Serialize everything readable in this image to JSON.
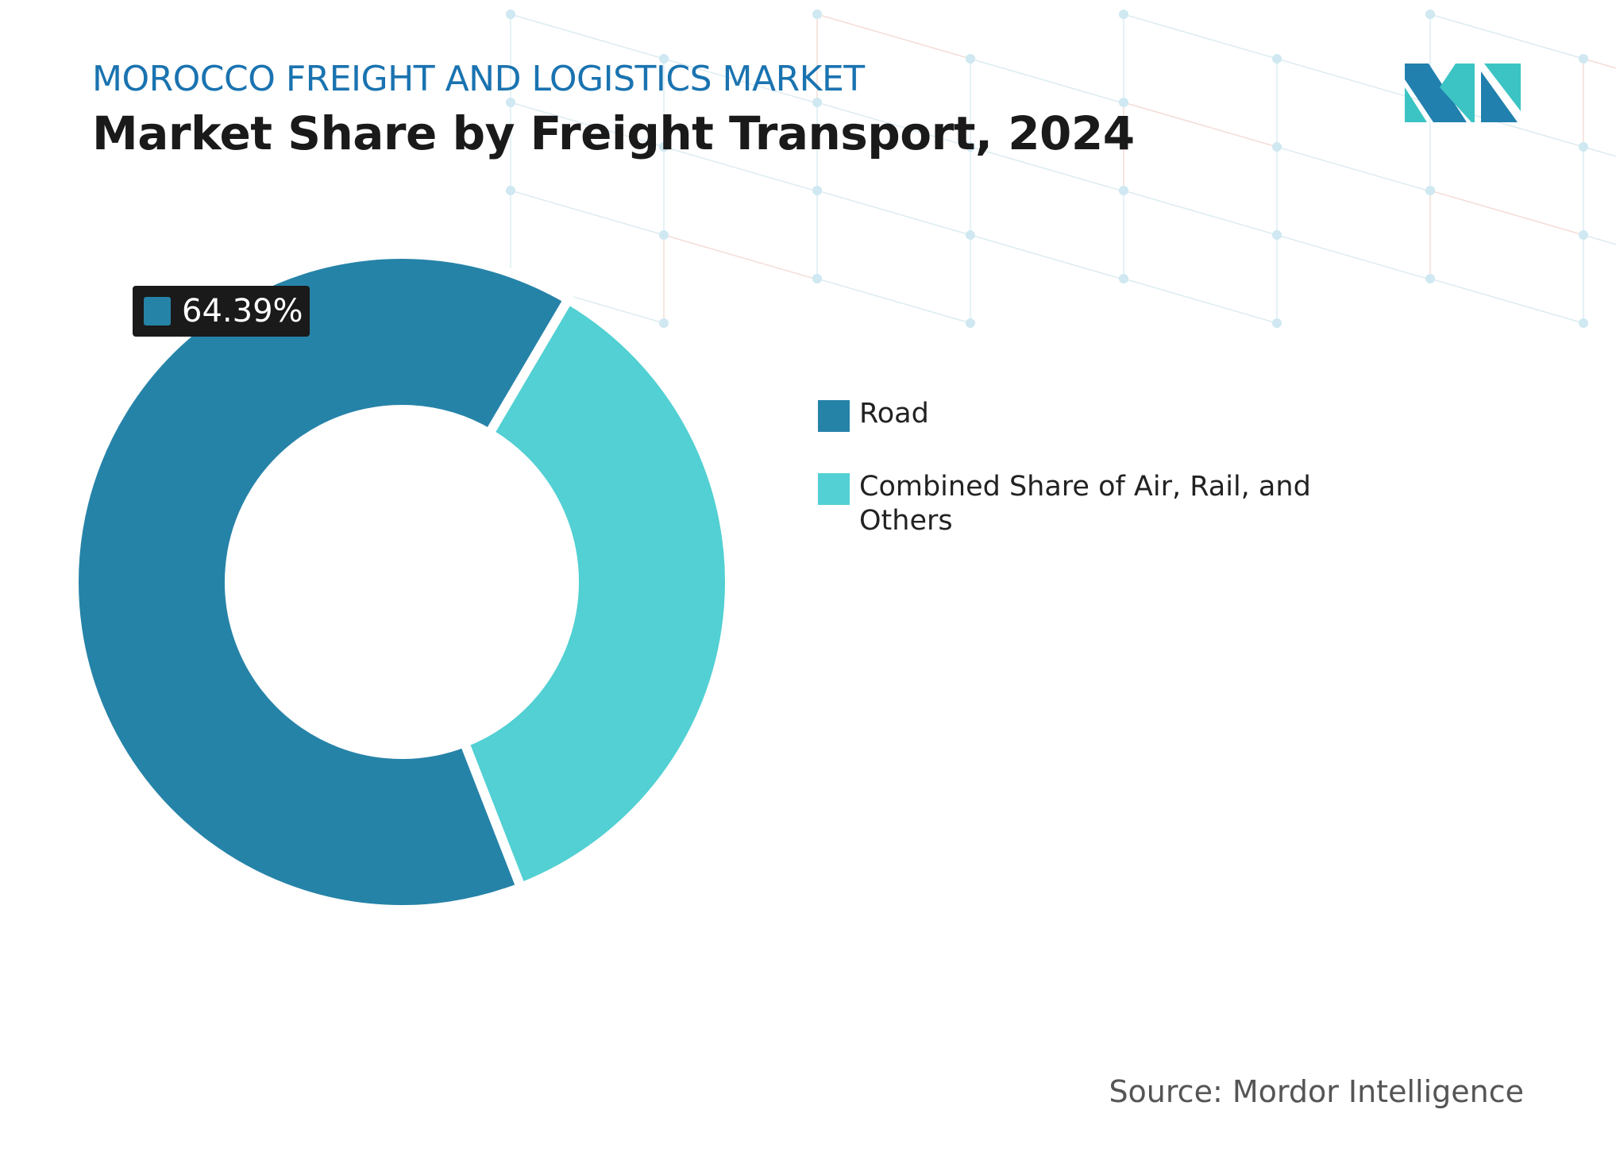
{
  "header": {
    "subtitle": "MOROCCO FREIGHT AND LOGISTICS MARKET",
    "title": "Market Share by Freight Transport, 2024"
  },
  "chart_data": {
    "type": "pie",
    "variant": "donut",
    "categories": [
      "Road",
      "Combined Share of Air, Rail, and Others"
    ],
    "values": [
      64.39,
      35.61
    ],
    "colors": [
      "#2683a8",
      "#52d0d3"
    ],
    "data_labels": [
      {
        "category": "Road",
        "text": "64.39%"
      }
    ],
    "legend_position": "right"
  },
  "source": "Source: Mordor Intelligence",
  "logo": {
    "text": "Mordor Intelligence",
    "colors": [
      "#2180ad",
      "#3cc4c4"
    ]
  }
}
